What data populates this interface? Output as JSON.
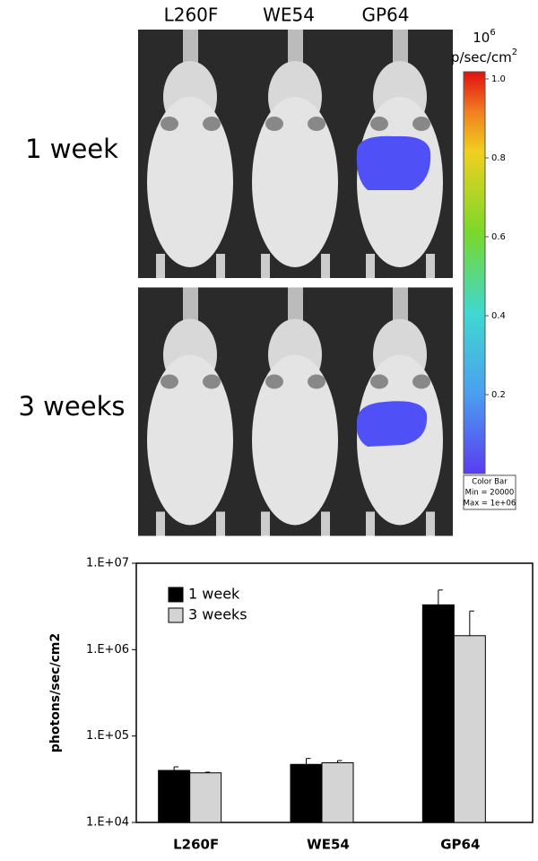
{
  "imaging": {
    "columns": [
      "L260F",
      "WE54",
      "GP64"
    ],
    "rows": [
      "1 week",
      "3 weeks"
    ],
    "colorbar": {
      "title": [
        "10",
        "6",
        "p/sec/cm",
        "2"
      ],
      "ylim": [
        0,
        1
      ],
      "yticks": [
        {
          "value": 1,
          "label": "1.0"
        },
        0.8,
        0.6,
        0.4,
        0.2
      ],
      "caption": [
        "Color Bar",
        "Min = 20000",
        "Max = 1e+06"
      ]
    }
  },
  "chart_data": {
    "type": "bar",
    "ylabel": "photons/sec/cm2",
    "categories": [
      "L260F",
      "WE54",
      "GP64"
    ],
    "log_scale": true,
    "ylim": [
      10000,
      10000000
    ],
    "yticks": [
      {
        "value": 10000,
        "label": "1.E+04"
      },
      {
        "value": 100000,
        "label": "1.E+05"
      },
      {
        "value": 1000000,
        "label": "1.E+06"
      },
      {
        "value": 10000000,
        "label": "1.E+07"
      }
    ],
    "legend": "upper left",
    "series": [
      {
        "name": "1 week",
        "color": "#000000",
        "values": [
          40000,
          47000,
          3300000
        ],
        "errors": [
          4000,
          8000,
          1600000
        ]
      },
      {
        "name": "3 weeks",
        "color": "#d4d4d4",
        "values": [
          37500,
          49000,
          1450000
        ],
        "errors": [
          700,
          3000,
          1350000
        ]
      }
    ]
  }
}
